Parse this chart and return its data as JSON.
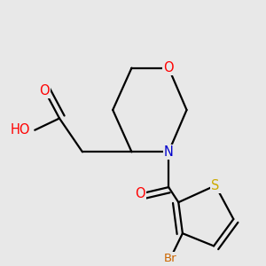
{
  "background_color": "#e8e8e8",
  "atom_colors": {
    "O": "#ff0000",
    "N": "#0000cc",
    "S": "#ccaa00",
    "Br": "#cc6600",
    "C": "#000000",
    "H": "#777777"
  },
  "bond_color": "#000000",
  "bond_lw": 1.6,
  "font_size": 10.5,
  "xlim": [
    -1.1,
    1.1
  ],
  "ylim": [
    -1.25,
    1.0
  ]
}
